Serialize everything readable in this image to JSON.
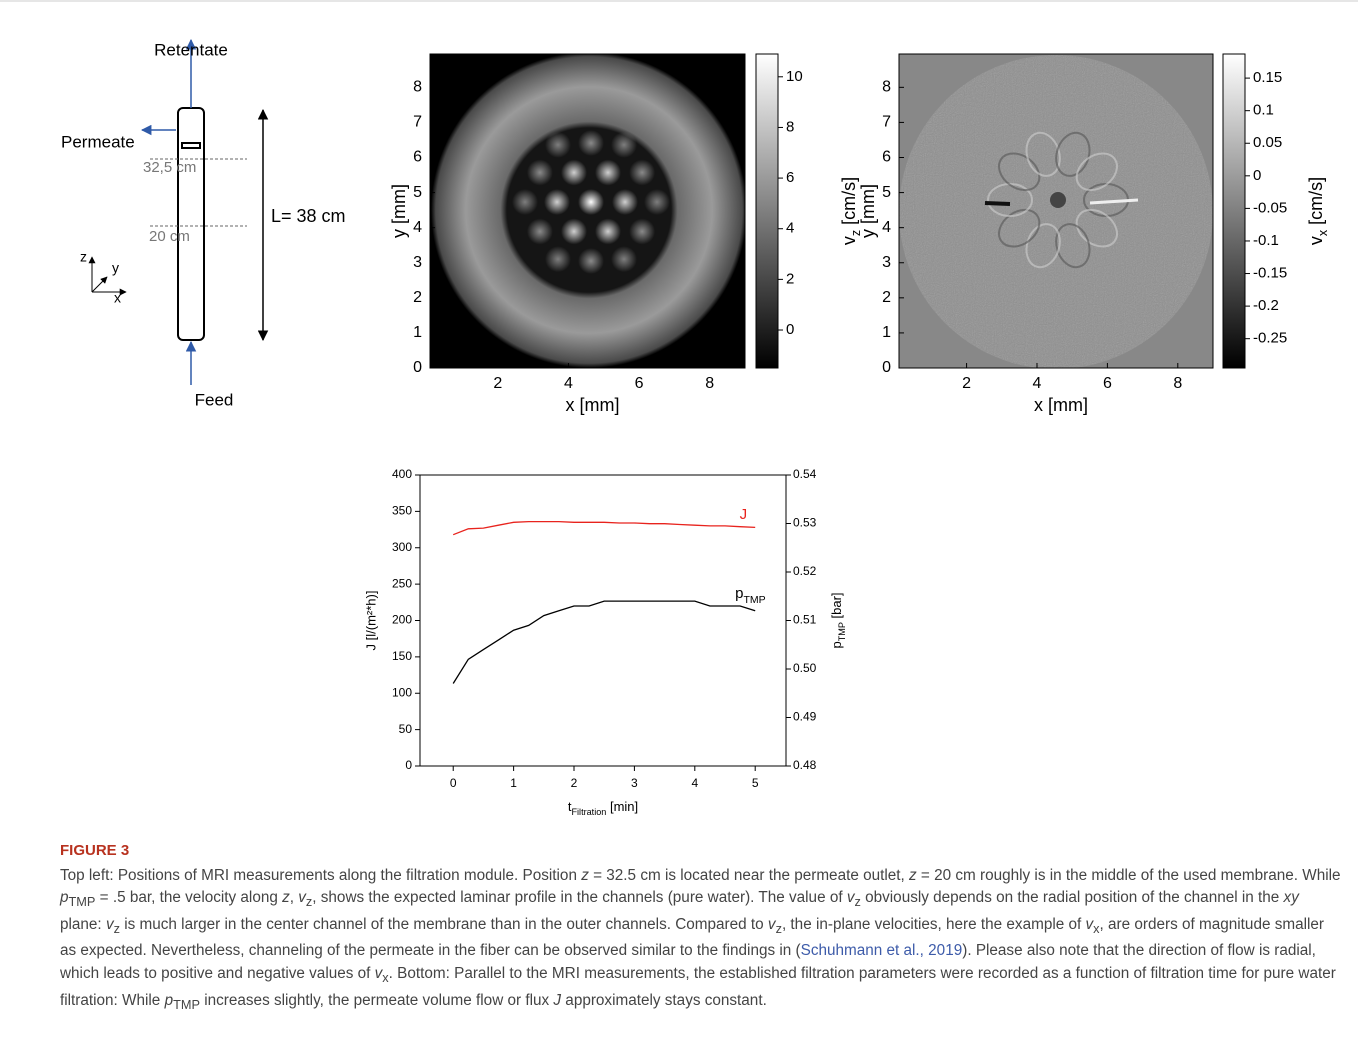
{
  "diagram": {
    "retentate": "Retentate",
    "permeate": "Permeate",
    "pos1": "32,5 cm",
    "pos2": "20 cm",
    "length": "L= 38 cm",
    "feed": "Feed",
    "axis_z": "z",
    "axis_y": "y",
    "axis_x": "x"
  },
  "chart_data": [
    {
      "type": "heatmap",
      "xlabel": "x [mm]",
      "ylabel": "y [mm]",
      "colorbar_label": [
        "v",
        "z",
        " [cm/s]"
      ],
      "xlim": [
        0.08,
        9.0
      ],
      "ylim": [
        0,
        8.95
      ],
      "xticks": [
        2,
        4,
        6,
        8
      ],
      "yticks": [
        0,
        1,
        2,
        3,
        4,
        5,
        6,
        7,
        8
      ],
      "clim": [
        -1.5,
        10.9
      ],
      "cticks": [
        0,
        2,
        4,
        6,
        8,
        10
      ]
    },
    {
      "type": "heatmap",
      "xlabel": "x [mm]",
      "ylabel": "y [mm]",
      "colorbar_label": [
        "v",
        "x",
        " [cm/s]"
      ],
      "xlim": [
        0.08,
        9.0
      ],
      "ylim": [
        0,
        8.95
      ],
      "xticks": [
        2,
        4,
        6,
        8
      ],
      "yticks": [
        0,
        1,
        2,
        3,
        4,
        5,
        6,
        7,
        8
      ],
      "clim": [
        -0.295,
        0.187
      ],
      "cticks": [
        -0.25,
        -0.2,
        -0.15,
        -0.1,
        -0.05,
        0,
        0.05,
        0.1,
        0.15
      ]
    },
    {
      "type": "line",
      "xlabel": [
        "t",
        "Filtration",
        " [min]"
      ],
      "ylabel": "J [l/(m²*h)]",
      "y2label": [
        "p",
        "TMP",
        " [bar]"
      ],
      "x": [
        0,
        0.25,
        0.5,
        0.75,
        1,
        1.25,
        1.5,
        1.75,
        2,
        2.25,
        2.5,
        2.75,
        3,
        3.25,
        3.5,
        3.75,
        4,
        4.25,
        4.5,
        4.75,
        5
      ],
      "xlim": [
        -0.55,
        5.51
      ],
      "xticks": [
        0,
        1,
        2,
        3,
        4,
        5
      ],
      "ylim": [
        0,
        400
      ],
      "yticks": [
        0,
        50,
        100,
        150,
        200,
        250,
        300,
        350,
        400
      ],
      "y2lim": [
        0.48,
        0.54
      ],
      "y2ticks": [
        0.48,
        0.49,
        {
          "value": 0.5,
          "label": "0.50"
        },
        0.51,
        0.52,
        0.53,
        0.54
      ],
      "series": [
        {
          "name": [
            "J"
          ],
          "color": "#e8231d",
          "values": [
            318,
            326,
            327,
            331,
            335,
            336,
            336,
            336,
            335,
            335,
            335,
            334,
            334,
            333,
            333,
            332,
            331,
            330,
            330,
            329,
            328
          ]
        },
        {
          "name": [
            "p",
            "TMP"
          ],
          "color": "#000000",
          "axis": "y2",
          "values": [
            0.497,
            0.502,
            0.504,
            0.506,
            0.508,
            0.509,
            0.511,
            0.512,
            0.513,
            0.513,
            0.514,
            0.514,
            0.514,
            0.514,
            0.514,
            0.514,
            0.514,
            0.513,
            0.513,
            0.513,
            0.512
          ]
        }
      ]
    }
  ],
  "caption": {
    "label": "FIGURE 3",
    "text": [
      "Top left: Positions of MRI measurements along the filtration module. Position ",
      "z",
      " = 32.5 cm is located near the permeate outlet, ",
      "z",
      " = 20 cm roughly is in the middle of the used membrane. While ",
      "p",
      "TMP",
      " = .5 bar, the velocity along ",
      "z",
      ", ",
      "v",
      "z",
      ", shows the expected laminar profile in the channels (pure water). The value of ",
      "v",
      "z",
      " obviously depends on the radial position of the channel in the ",
      "xy",
      " plane: ",
      "v",
      "z",
      " is much larger in the center channel of the membrane than in the outer channels. Compared to ",
      "v",
      "z",
      ", the in-plane velocities, here the example of ",
      "v",
      "x",
      ", are orders of magnitude smaller as expected. Nevertheless, channeling of the permeate in the fiber can be observed similar to the findings in (",
      "Schuhmann et al., 2019",
      "). Please also note that the direction of flow is radial, which leads to positive and negative values of ",
      "v",
      "x",
      ". Bottom: Parallel to the MRI measurements, the established filtration parameters were recorded as a function of filtration time for pure water filtration: While ",
      "p",
      "TMP",
      " increases slightly, the permeate volume flow or flux ",
      "J",
      " approximately stays constant."
    ]
  }
}
